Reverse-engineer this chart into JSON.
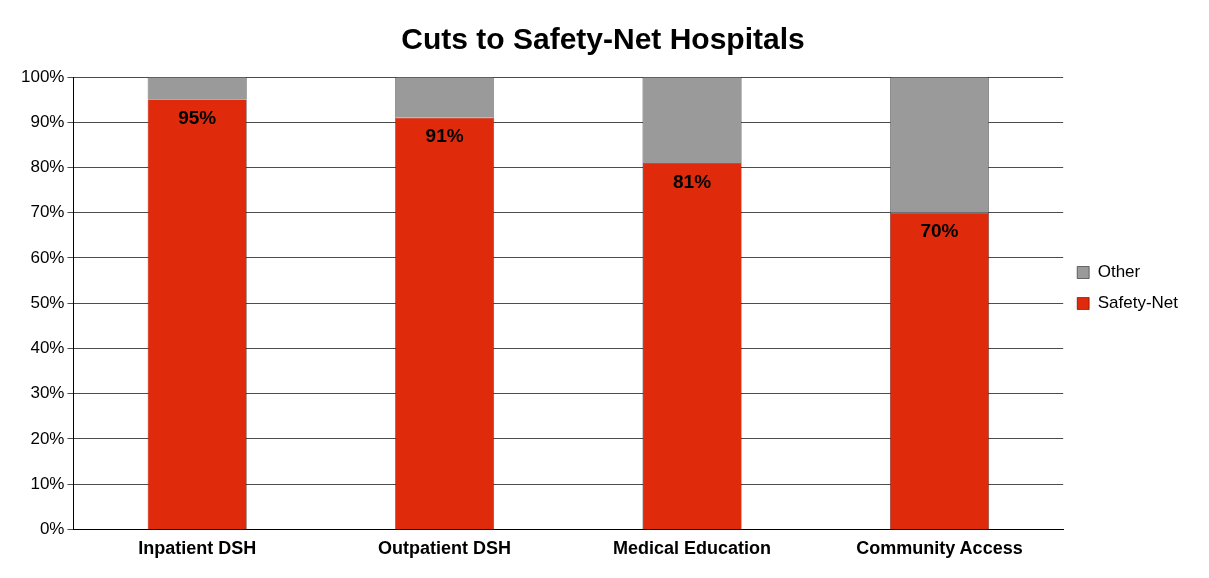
{
  "chart_data": {
    "type": "bar",
    "title": "Cuts to Safety-Net Hospitals",
    "categories": [
      "Inpatient DSH",
      "Outpatient DSH",
      "Medical Education",
      "Community Access"
    ],
    "stacked": true,
    "series": [
      {
        "name": "Safety-Net",
        "color": "#e02a0c",
        "values": [
          95,
          91,
          81,
          70
        ],
        "value_labels": [
          "95%",
          "91%",
          "81%",
          "70%"
        ]
      },
      {
        "name": "Other",
        "color": "#9a9a9a",
        "values": [
          5,
          9,
          19,
          30
        ]
      }
    ],
    "ylim": [
      0,
      100
    ],
    "yticks": [
      {
        "value": 0,
        "label": "0%"
      },
      {
        "value": 10,
        "label": "10%"
      },
      {
        "value": 20,
        "label": "20%"
      },
      {
        "value": 30,
        "label": "30%"
      },
      {
        "value": 40,
        "label": "40%"
      },
      {
        "value": 50,
        "label": "50%"
      },
      {
        "value": 60,
        "label": "60%"
      },
      {
        "value": 70,
        "label": "70%"
      },
      {
        "value": 80,
        "label": "80%"
      },
      {
        "value": 90,
        "label": "90%"
      },
      {
        "value": 100,
        "label": "100%"
      }
    ],
    "grid": "y",
    "legend": "right"
  }
}
